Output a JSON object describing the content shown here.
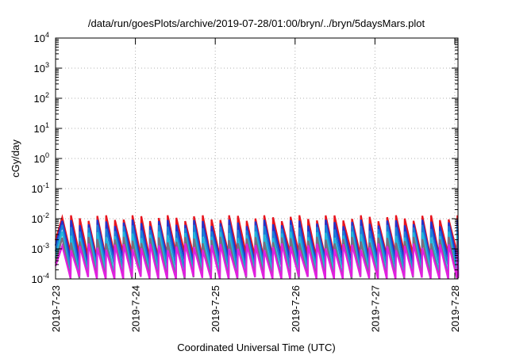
{
  "chart_data": {
    "type": "line",
    "title": "/data/run/goesPlots/archive/2019-07-28/01:00/bryn/../bryn/5daysMars.plot",
    "xlabel": "Coordinated Universal Time (UTC)",
    "ylabel": "cGy/day",
    "yscale": "log",
    "ylim": [
      0.0001,
      10000
    ],
    "xlim": [
      "2019-7-23",
      "2019-7-28"
    ],
    "grid": true,
    "x_ticks": [
      "2019-7-23",
      "2019-7-24",
      "2019-7-25",
      "2019-7-26",
      "2019-7-27",
      "2019-7-28"
    ],
    "y_ticks": [
      {
        "base": "10",
        "exp": "-4"
      },
      {
        "base": "10",
        "exp": "-3"
      },
      {
        "base": "10",
        "exp": "-2"
      },
      {
        "base": "10",
        "exp": "-1"
      },
      {
        "base": "10",
        "exp": "0"
      },
      {
        "base": "10",
        "exp": "1"
      },
      {
        "base": "10",
        "exp": "2"
      },
      {
        "base": "10",
        "exp": "3"
      },
      {
        "base": "10",
        "exp": "4"
      }
    ],
    "sawtooth": {
      "period_days": 0.11,
      "first_peak": "2019-7-23 02:00",
      "last_time": "2019-7-28 01:00"
    },
    "series": [
      {
        "color": "#e8141e",
        "peak": 0.011,
        "trough": 0.0006
      },
      {
        "color": "#2233cc",
        "peak": 0.0075,
        "trough": 0.0004
      },
      {
        "color": "#1a7fd8",
        "peak": 0.005,
        "trough": 0.00025
      },
      {
        "color": "#22b8d8",
        "peak": 0.003,
        "trough": 0.00015
      },
      {
        "color": "#7a6e7e",
        "peak": 0.002,
        "trough": 0.0001
      },
      {
        "color": "#e21ee0",
        "peak": 0.0012,
        "trough": 0.0001
      }
    ]
  }
}
